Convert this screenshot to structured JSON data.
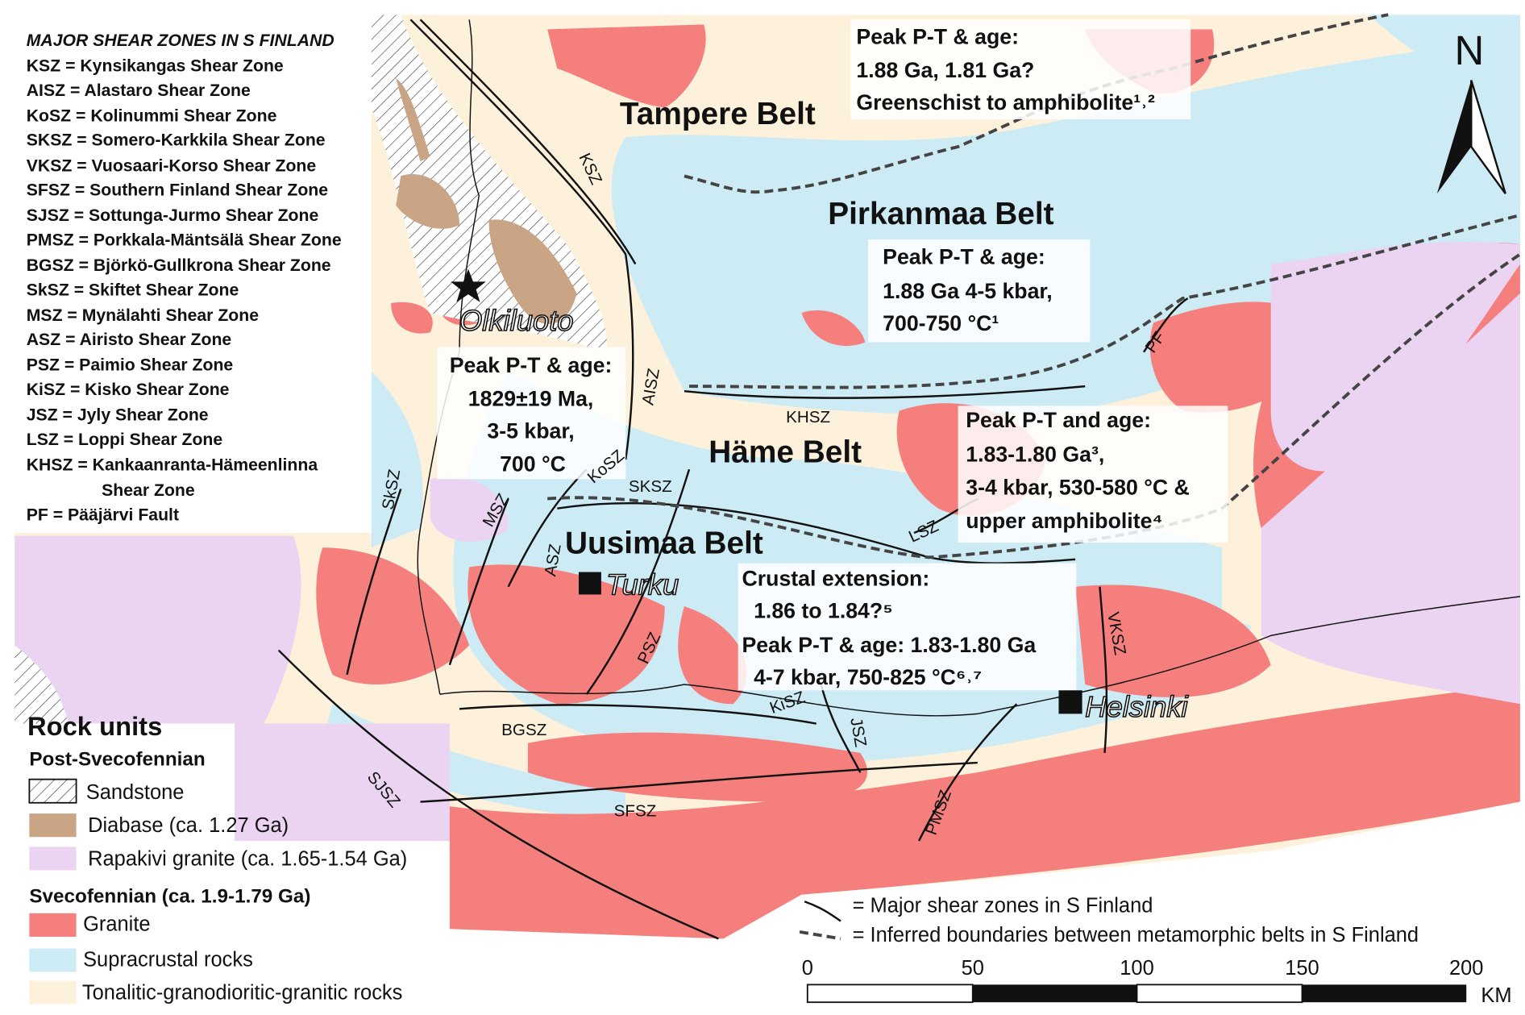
{
  "colors": {
    "granite": "#f47f7d",
    "supracrustal": "#cdebf4",
    "tonalitic": "#fdf1dc",
    "rapakivi": "#ebd4f2",
    "diabase": "#c9a485",
    "sandstone_hatch": "#333333"
  },
  "shear_zone_legend": {
    "title": "MAJOR SHEAR ZONES IN S FINLAND",
    "items": [
      "KSZ = Kynsikangas Shear Zone",
      "AISZ = Alastaro Shear Zone",
      "KoSZ = Kolinummi Shear Zone",
      "SKSZ = Somero-Karkkila Shear Zone",
      "VKSZ = Vuosaari-Korso Shear Zone",
      "SFSZ = Southern Finland Shear Zone",
      "SJSZ = Sottunga-Jurmo Shear Zone",
      "PMSZ = Porkkala-Mäntsälä Shear Zone",
      "BGSZ = Björkö-Gullkrona Shear Zone",
      "SkSZ = Skiftet Shear Zone",
      "MSZ = Mynälahti Shear Zone",
      "ASZ = Airisto Shear Zone",
      "PSZ = Paimio Shear Zone",
      "KiSZ = Kisko Shear Zone",
      "JSZ = Jyly Shear Zone",
      "LSZ = Loppi Shear Zone",
      "KHSZ = Kankaanranta-Hämeenlinna",
      "Shear Zone",
      "PF = Pääjärvi Fault"
    ]
  },
  "rock_units": {
    "title": "Rock units",
    "post_group": "Post-Svecofennian",
    "sandstone": "Sandstone",
    "diabase": "Diabase (ca. 1.27 Ga)",
    "rapakivi": "Rapakivi granite (ca. 1.65-1.54 Ga)",
    "sveco_group": "Svecofennian (ca. 1.9-1.79 Ga)",
    "granite": "Granite",
    "supracrustal": "Supracrustal rocks",
    "tonalitic": "Tonalitic-granodioritic-granitic rocks"
  },
  "line_legend": {
    "shear": "= Major shear zones in S Finland",
    "boundary": "= Inferred boundaries between metamorphic belts in S Finland"
  },
  "scale_bar": {
    "ticks": [
      "0",
      "50",
      "100",
      "150",
      "200"
    ],
    "unit": "KM"
  },
  "north": "N",
  "belts": {
    "tampere": "Tampere Belt",
    "pirkanmaa": "Pirkanmaa Belt",
    "hame": "Häme Belt",
    "uusimaa": "Uusimaa Belt"
  },
  "places": {
    "olkiluoto": "Olkiluoto",
    "turku": "Turku",
    "helsinki": "Helsinki"
  },
  "annotations": {
    "tampere": [
      "Peak P-T & age:",
      "1.88 Ga, 1.81 Ga?",
      "Greenschist to amphibolite¹˒²"
    ],
    "pirkanmaa": [
      "Peak P-T & age:",
      "1.88 Ga 4-5 kbar,",
      "700-750 °C¹"
    ],
    "olkiluoto": [
      "Peak P-T & age:",
      "1829±19 Ma,",
      "3-5 kbar,",
      "700 °C"
    ],
    "hame": [
      "Peak P-T and age:",
      "1.83-1.80 Ga³,",
      "3-4 kbar, 530-580 °C &",
      "upper amphibolite⁴"
    ],
    "uusimaa": [
      "Crustal extension:",
      "1.86 to 1.84?⁵",
      "Peak P-T & age: 1.83-1.80 Ga",
      "4-7 kbar, 750-825 °C⁶˒⁷"
    ]
  },
  "shear_labels": {
    "KSZ": "KSZ",
    "AISZ": "AISZ",
    "KoSZ": "KoSZ",
    "SKSZ": "SKSZ",
    "SkSZ": "SkSZ",
    "MSZ": "MSZ",
    "ASZ": "ASZ",
    "PSZ": "PSZ",
    "KHSZ": "KHSZ",
    "LSZ": "LSZ",
    "VKSZ": "VKSZ",
    "KiSZ": "KiSZ",
    "JSZ": "JSZ",
    "BGSZ": "BGSZ",
    "SFSZ": "SFSZ",
    "SJSZ": "SJSZ",
    "PMSZ": "PMSZ",
    "PF": "PF"
  }
}
